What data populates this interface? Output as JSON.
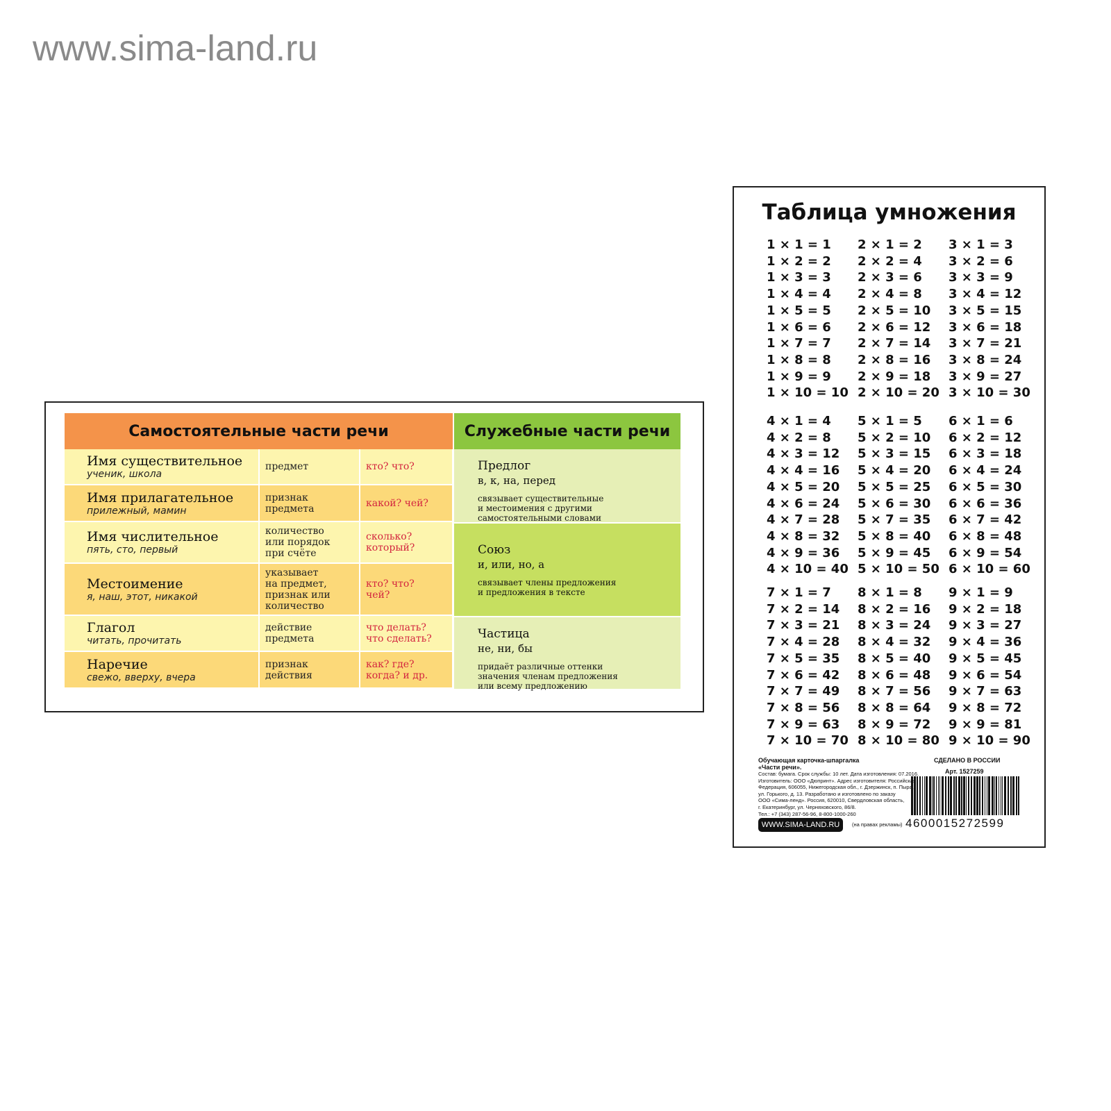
{
  "watermark": "www.sima-land.ru",
  "parts_card": {
    "header_main": "Самостоятельные части речи",
    "header_service": "Служебные части речи",
    "rows": [
      {
        "name": "Имя существительное",
        "example": "ученик, школа",
        "meaning": "предмет",
        "question": "кто? что?"
      },
      {
        "name": "Имя прилагательное",
        "example": "прилежный, мамин",
        "meaning": "признак\nпредмета",
        "question": "какой? чей?"
      },
      {
        "name": "Имя числительное",
        "example": "пять, сто, первый",
        "meaning": "количество\nили порядок\nпри счёте",
        "question": "сколько?\nкоторый?"
      },
      {
        "name": "Местоимение",
        "example": "я, наш, этот, никакой",
        "meaning": "указывает\nна предмет,\nпризнак или\nколичество",
        "question": "кто? что?\nчей?"
      },
      {
        "name": "Глагол",
        "example": "читать, прочитать",
        "meaning": "действие\nпредмета",
        "question": "что делать?\nчто сделать?"
      },
      {
        "name": "Наречие",
        "example": "свежо, вверху, вчера",
        "meaning": "признак\nдействия",
        "question": "как? где?\nкогда? и др."
      }
    ],
    "service": [
      {
        "name": "Предлог",
        "examples": "в, к, на, перед",
        "description": "связывает существительные\nи местоимения с другими\nсамостоятельными словами"
      },
      {
        "name": "Союз",
        "examples": "и, или, но, а",
        "description": "связывает члены предложения\nи предложения в тексте"
      },
      {
        "name": "Частица",
        "examples": "не, ни, бы",
        "description": "придаёт различные оттенки\nзначения членам предложения\nили всему предложению"
      }
    ],
    "colors": {
      "orange": "#f4934a",
      "green": "#8cc63f",
      "light_yellow": "#fdf5ae",
      "dark_yellow": "#fcd979",
      "light_green": "#e6efb6",
      "bright_green": "#c6df60"
    }
  },
  "mult_card": {
    "title": "Таблица умножения",
    "columns": [
      [
        "1 × 1 = 1",
        "1 × 2 = 2",
        "1 × 3 = 3",
        "1 × 4 = 4",
        "1 × 5 = 5",
        "1 × 6 = 6",
        "1 × 7 = 7",
        "1 × 8 = 8",
        "1 × 9 = 9",
        "1 × 10 = 10"
      ],
      [
        "2 × 1 = 2",
        "2 × 2 = 4",
        "2 × 3 = 6",
        "2 × 4 = 8",
        "2 × 5 = 10",
        "2 × 6 = 12",
        "2 × 7 = 14",
        "2 × 8 = 16",
        "2 × 9 = 18",
        "2 × 10 = 20"
      ],
      [
        "3 × 1 = 3",
        "3 × 2 = 6",
        "3 × 3 = 9",
        "3 × 4 = 12",
        "3 × 5 = 15",
        "3 × 6 = 18",
        "3 × 7 = 21",
        "3 × 8 = 24",
        "3 × 9 = 27",
        "3 × 10 = 30"
      ],
      [
        "4 × 1 = 4",
        "4 × 2 = 8",
        "4 × 3 = 12",
        "4 × 4 = 16",
        "4 × 5 = 20",
        "4 × 6 = 24",
        "4 × 7 = 28",
        "4 × 8 = 32",
        "4 × 9 = 36",
        "4 × 10 = 40"
      ],
      [
        "5 × 1 = 5",
        "5 × 2 = 10",
        "5 × 3 = 15",
        "5 × 4 = 20",
        "5 × 5 = 25",
        "5 × 6 = 30",
        "5 × 7 = 35",
        "5 × 8 = 40",
        "5 × 9 = 45",
        "5 × 10 = 50"
      ],
      [
        "6 × 1 = 6",
        "6 × 2 = 12",
        "6 × 3 = 18",
        "6 × 4 = 24",
        "6 × 5 = 30",
        "6 × 6 = 36",
        "6 × 7 = 42",
        "6 × 8 = 48",
        "6 × 9 = 54",
        "6 × 10 = 60"
      ],
      [
        "7 × 1 = 7",
        "7 × 2 = 14",
        "7 × 3 = 21",
        "7 × 4 = 28",
        "7 × 5 = 35",
        "7 × 6 = 42",
        "7 × 7 = 49",
        "7 × 8 = 56",
        "7 × 9 = 63",
        "7 × 10 = 70"
      ],
      [
        "8 × 1 = 8",
        "8 × 2 = 16",
        "8 × 3 = 24",
        "8 × 4 = 32",
        "8 × 5 = 40",
        "8 × 6 = 48",
        "8 × 7 = 56",
        "8 × 8 = 64",
        "8 × 9 = 72",
        "8 × 10 = 80"
      ],
      [
        "9 × 1 = 9",
        "9 × 2 = 18",
        "9 × 3 = 27",
        "9 × 4 = 36",
        "9 × 5 = 45",
        "9 × 6 = 54",
        "9 × 7 = 63",
        "9 × 8 = 72",
        "9 × 9 = 81",
        "9 × 10 = 90"
      ]
    ],
    "footer": {
      "product": "Обучающая карточка-шпаргалка\n«Части речи».",
      "info": "Состав: бумага. Срок службы: 10 лет. Дата изготовления: 07.2016.\nИзготовитель: ООО «Дюпринт». Адрес изготовителя: Российская\nФедерация, 606055, Нижегородская обл., г. Дзержинск, п. Пыра,\nул. Горького, д. 13. Разработано и изготовлено по заказу\nООО «Сима-ленд». Россия, 620010, Свердловская область,\nг. Екатеринбург, ул. Черняховского, 86/8.\nТел.: +7 (343) 287-56-96, 8-800-1000-260",
      "site": "WWW.SIMA-LAND.RU",
      "ad_note": "(на правах рекламы)",
      "made_in": "СДЕЛАНО В РОССИИ",
      "article": "Арт. 1527259",
      "barcode": "4600015272599"
    }
  }
}
